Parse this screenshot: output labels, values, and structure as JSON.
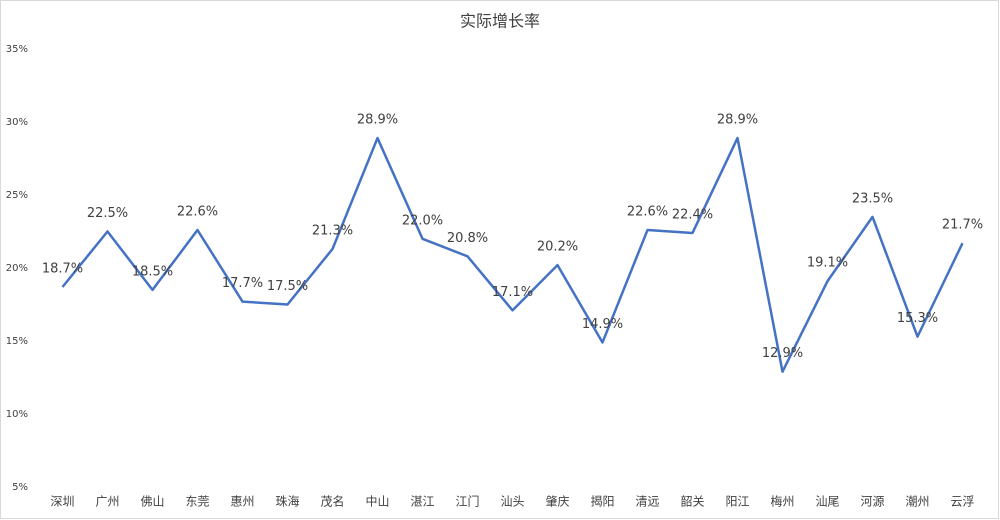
{
  "chart_data": {
    "type": "line",
    "title": "实际增长率",
    "categories": [
      "深圳",
      "广州",
      "佛山",
      "东莞",
      "惠州",
      "珠海",
      "茂名",
      "中山",
      "湛江",
      "江门",
      "汕头",
      "肇庆",
      "揭阳",
      "清远",
      "韶关",
      "阳江",
      "梅州",
      "汕尾",
      "河源",
      "潮州",
      "云浮"
    ],
    "series": [
      {
        "color": "#4472c4",
        "values": [
          18.7,
          22.5,
          18.5,
          22.6,
          17.7,
          17.5,
          21.3,
          28.9,
          22.0,
          20.8,
          17.1,
          20.2,
          14.9,
          22.6,
          22.4,
          28.9,
          12.9,
          19.1,
          23.5,
          15.3,
          21.7
        ],
        "value_labels": [
          "18.7%",
          "22.5%",
          "18.5%",
          "22.6%",
          "17.7%",
          "17.5%",
          "21.3%",
          "28.9%",
          "22.0%",
          "20.8%",
          "17.1%",
          "20.2%",
          "14.9%",
          "22.6%",
          "22.4%",
          "28.9%",
          "12.9%",
          "19.1%",
          "23.5%",
          "15.3%",
          "21.7%"
        ]
      }
    ],
    "ylim": [
      5,
      35
    ],
    "yticks": [
      {
        "value": 5,
        "label": "5%"
      },
      {
        "value": 10,
        "label": "10%"
      },
      {
        "value": 15,
        "label": "15%"
      },
      {
        "value": 20,
        "label": "20%"
      },
      {
        "value": 25,
        "label": "25%"
      },
      {
        "value": 30,
        "label": "30%"
      },
      {
        "value": 35,
        "label": "35%"
      }
    ],
    "grid": false
  }
}
